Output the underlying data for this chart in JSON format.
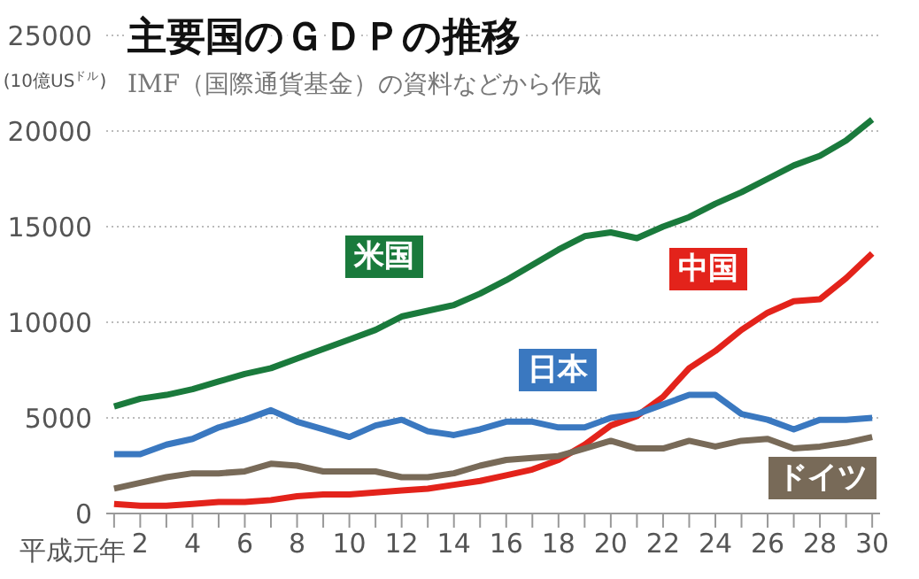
{
  "chart_data": {
    "type": "line",
    "title": "主要国のＧＤＰの推移",
    "subtitle": "IMF（国際通貨基金）の資料などから作成",
    "ylabel": "(10億US$^{ドル}$)",
    "xlabel": "平成元年",
    "x": [
      1,
      2,
      3,
      4,
      5,
      6,
      7,
      8,
      9,
      10,
      11,
      12,
      13,
      14,
      15,
      16,
      17,
      18,
      19,
      20,
      21,
      22,
      23,
      24,
      25,
      26,
      27,
      28,
      29,
      30
    ],
    "xlim": [
      0.7,
      30.3
    ],
    "xticks": [
      {
        "value": 1,
        "label": null
      },
      2,
      {
        "value": 3,
        "label": null
      },
      4,
      {
        "value": 5,
        "label": null
      },
      6,
      {
        "value": 7,
        "label": null
      },
      8,
      {
        "value": 9,
        "label": null
      },
      10,
      {
        "value": 11,
        "label": null
      },
      12,
      {
        "value": 13,
        "label": null
      },
      14,
      {
        "value": 15,
        "label": null
      },
      16,
      {
        "value": 17,
        "label": null
      },
      18,
      {
        "value": 19,
        "label": null
      },
      20,
      {
        "value": 21,
        "label": null
      },
      22,
      {
        "value": 23,
        "label": null
      },
      24,
      {
        "value": 25,
        "label": null
      },
      26,
      {
        "value": 27,
        "label": null
      },
      28,
      {
        "value": 29,
        "label": null
      },
      30
    ],
    "ylim": [
      0,
      25000
    ],
    "yticks": [
      0,
      5000,
      10000,
      15000,
      20000,
      25000
    ],
    "grid": "y",
    "legend": false,
    "marker": "none",
    "line_style": "solid",
    "series": [
      {
        "name": "米国",
        "color": "#1a7a3c",
        "values": [
          5600,
          6000,
          6200,
          6500,
          6900,
          7300,
          7600,
          8100,
          8600,
          9100,
          9600,
          10300,
          10600,
          10900,
          11500,
          12200,
          13000,
          13800,
          14500,
          14700,
          14400,
          15000,
          15500,
          16200,
          16800,
          17500,
          18200,
          18700,
          19500,
          20600
        ]
      },
      {
        "name": "中国",
        "color": "#e3231b",
        "values": [
          500,
          400,
          400,
          500,
          600,
          600,
          700,
          900,
          1000,
          1000,
          1100,
          1200,
          1300,
          1500,
          1700,
          2000,
          2300,
          2800,
          3600,
          4600,
          5100,
          6100,
          7600,
          8500,
          9600,
          10500,
          11100,
          11200,
          12300,
          13600
        ]
      },
      {
        "name": "日本",
        "color": "#3a78c0",
        "values": [
          3100,
          3100,
          3600,
          3900,
          4500,
          4900,
          5400,
          4800,
          4400,
          4000,
          4600,
          4900,
          4300,
          4100,
          4400,
          4800,
          4800,
          4500,
          4500,
          5000,
          5200,
          5700,
          6200,
          6200,
          5200,
          4900,
          4400,
          4900,
          4900,
          5000
        ]
      },
      {
        "name": "ドイツ",
        "color": "#786a58",
        "values": [
          1300,
          1600,
          1900,
          2100,
          2100,
          2200,
          2600,
          2500,
          2200,
          2200,
          2200,
          1900,
          1900,
          2100,
          2500,
          2800,
          2900,
          3000,
          3400,
          3800,
          3400,
          3400,
          3800,
          3500,
          3800,
          3900,
          3400,
          3500,
          3700,
          4000
        ]
      }
    ]
  }
}
